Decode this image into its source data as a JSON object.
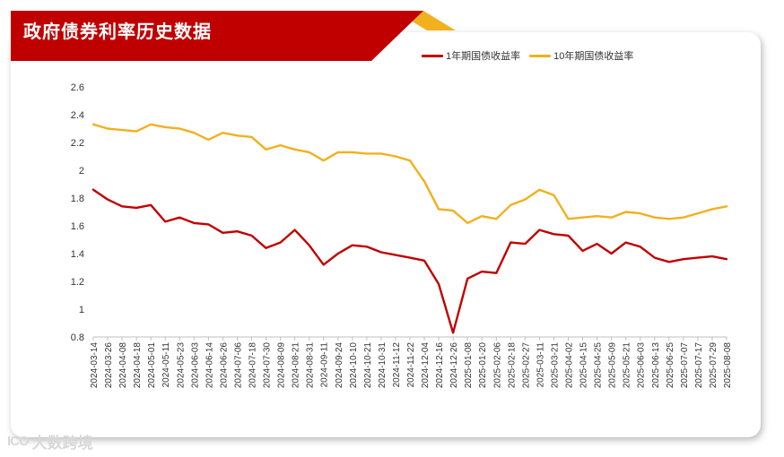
{
  "header": {
    "title": "政府债券利率历史数据"
  },
  "watermark": {
    "logo": "ICO",
    "text": "大数跨境"
  },
  "colors": {
    "red": "#c00000",
    "gold": "#f2b01e",
    "axis": "#333333"
  },
  "chart_data": {
    "type": "line",
    "title": "政府债券利率历史数据",
    "ylim": [
      0.8,
      2.6
    ],
    "yticks": [
      "0.8",
      "1",
      "1.2",
      "1.4",
      "1.6",
      "1.8",
      "2",
      "2.2",
      "2.4",
      "2.6"
    ],
    "grid": false,
    "legend_position": "top-right",
    "x": [
      "2024-03-14",
      "2024-03-26",
      "2024-04-08",
      "2024-04-18",
      "2024-05-01",
      "2024-05-11",
      "2024-05-23",
      "2024-06-03",
      "2024-06-14",
      "2024-06-26",
      "2024-07-06",
      "2024-07-18",
      "2024-07-30",
      "2024-08-09",
      "2024-08-21",
      "2024-08-31",
      "2024-09-11",
      "2024-09-24",
      "2024-10-10",
      "2024-10-21",
      "2024-10-31",
      "2024-11-12",
      "2024-11-22",
      "2024-12-04",
      "2024-12-16",
      "2024-12-26",
      "2025-01-08",
      "2025-01-20",
      "2025-02-06",
      "2025-02-18",
      "2025-02-27",
      "2025-03-11",
      "2025-03-21",
      "2025-04-02",
      "2025-04-15",
      "2025-04-25",
      "2025-05-09",
      "2025-05-21",
      "2025-06-03",
      "2025-06-13",
      "2025-06-25",
      "2025-07-07",
      "2025-07-17",
      "2025-07-29",
      "2025-08-08"
    ],
    "series": [
      {
        "name": "1年期国债收益率",
        "color": "#c00000",
        "values": [
          1.86,
          1.79,
          1.74,
          1.73,
          1.75,
          1.63,
          1.66,
          1.62,
          1.61,
          1.55,
          1.56,
          1.53,
          1.44,
          1.48,
          1.57,
          1.46,
          1.32,
          1.4,
          1.46,
          1.45,
          1.41,
          1.39,
          1.37,
          1.35,
          1.18,
          0.83,
          1.22,
          1.27,
          1.26,
          1.48,
          1.47,
          1.57,
          1.54,
          1.53,
          1.42,
          1.47,
          1.4,
          1.48,
          1.45,
          1.37,
          1.34,
          1.36,
          1.37,
          1.38,
          1.36
        ]
      },
      {
        "name": "10年期国债收益率",
        "color": "#f2b01e",
        "values": [
          2.33,
          2.3,
          2.29,
          2.28,
          2.33,
          2.31,
          2.3,
          2.27,
          2.22,
          2.27,
          2.25,
          2.24,
          2.15,
          2.18,
          2.15,
          2.13,
          2.07,
          2.13,
          2.13,
          2.12,
          2.12,
          2.1,
          2.07,
          1.92,
          1.72,
          1.71,
          1.62,
          1.67,
          1.65,
          1.75,
          1.79,
          1.86,
          1.82,
          1.65,
          1.66,
          1.67,
          1.66,
          1.7,
          1.69,
          1.66,
          1.65,
          1.66,
          1.69,
          1.72,
          1.74
        ]
      }
    ]
  }
}
